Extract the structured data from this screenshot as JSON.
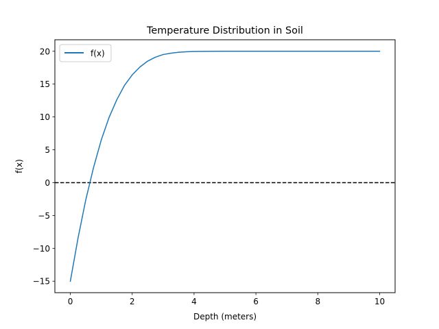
{
  "chart_data": {
    "type": "line",
    "title": "Temperature Distribution in Soil",
    "xlabel": "Depth (meters)",
    "ylabel": "f(x)",
    "xlim": [
      -0.5,
      10.5
    ],
    "ylim": [
      -16.75,
      21.75
    ],
    "x_ticks": [
      0,
      2,
      4,
      6,
      8,
      10
    ],
    "y_ticks": [
      -15,
      -10,
      -5,
      0,
      5,
      10,
      15,
      20
    ],
    "x_tick_labels": [
      "0",
      "2",
      "4",
      "6",
      "8",
      "10"
    ],
    "y_tick_labels": [
      "−15",
      "−10",
      "−5",
      "0",
      "5",
      "10",
      "15",
      "20"
    ],
    "grid": false,
    "legend": {
      "position": "upper-left",
      "entries": [
        "f(x)"
      ]
    },
    "series": [
      {
        "name": "f(x)",
        "color": "#1f77b4",
        "x": [
          0,
          0.25,
          0.5,
          0.75,
          1.0,
          1.25,
          1.5,
          1.75,
          2.0,
          2.25,
          2.5,
          2.75,
          3.0,
          3.25,
          3.5,
          3.75,
          4.0,
          4.5,
          5.0,
          6.0,
          7.0,
          8.0,
          9.0,
          10.0
        ],
        "values": [
          -15.0,
          -8.4,
          -2.6,
          2.3,
          6.5,
          9.9,
          12.6,
          14.8,
          16.4,
          17.6,
          18.5,
          19.1,
          19.5,
          19.7,
          19.85,
          19.92,
          19.96,
          19.99,
          20.0,
          20.0,
          20.0,
          20.0,
          20.0,
          20.0
        ]
      }
    ],
    "reference_lines": [
      {
        "orientation": "horizontal",
        "y": 0,
        "color": "#000000",
        "style": "dashed"
      }
    ]
  }
}
